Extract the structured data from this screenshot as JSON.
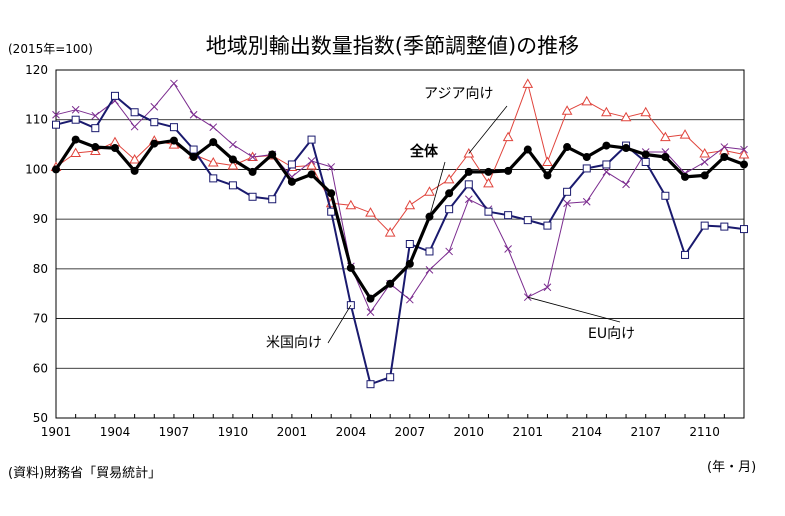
{
  "title": "地域別輸出数量指数(季節調整値)の推移",
  "base_note": "(2015年=100)",
  "source_note": "(資料)財務省「貿易統計」",
  "unit_note": "(年・月)",
  "colors": {
    "total": "#000000",
    "us": "#1a1a6e",
    "eu": "#7b2c8f",
    "asia": "#e0443c"
  },
  "chart_data": {
    "type": "line",
    "title": "地域別輸出数量指数(季節調整値)の推移",
    "xlabel": "(年・月)",
    "ylabel": "",
    "ylim": [
      50,
      120
    ],
    "yticks": [
      50,
      60,
      70,
      80,
      90,
      100,
      110,
      120
    ],
    "x_tick_labels": [
      "1901",
      "1904",
      "1907",
      "1910",
      "2001",
      "2004",
      "2007",
      "2010",
      "2101",
      "2104",
      "2107",
      "2110"
    ],
    "x": [
      "1901",
      "1902",
      "1903",
      "1904",
      "1905",
      "1906",
      "1907",
      "1908",
      "1909",
      "1910",
      "1911",
      "1912",
      "2001",
      "2002",
      "2003",
      "2004",
      "2005",
      "2006",
      "2007",
      "2008",
      "2009",
      "2010",
      "2011",
      "2012",
      "2101",
      "2102",
      "2103",
      "2104",
      "2105",
      "2106",
      "2107",
      "2108",
      "2109",
      "2110",
      "2111",
      "2112"
    ],
    "grid": true,
    "legend": "none",
    "series": [
      {
        "name": "全体",
        "color": "#000000",
        "marker": "dot",
        "values": [
          100,
          106,
          104.5,
          104.3,
          99.7,
          105.2,
          105.8,
          102.5,
          105.5,
          102,
          99.5,
          103,
          97.5,
          99,
          95.2,
          80.2,
          74,
          77,
          81,
          90.5,
          95.2,
          99.5,
          99.5,
          99.7,
          104,
          98.8,
          104.5,
          102.5,
          104.8,
          104.3,
          103,
          102.5,
          98.5,
          98.8,
          102.5,
          101
        ]
      },
      {
        "name": "米国向け",
        "color": "#1a1a6e",
        "marker": "square",
        "values": [
          109,
          110,
          108.3,
          114.8,
          111.5,
          109.5,
          108.5,
          104,
          98.2,
          96.8,
          94.5,
          94,
          101,
          106,
          91.5,
          72.7,
          56.8,
          58.2,
          85,
          83.5,
          92,
          97,
          91.5,
          90.8,
          89.8,
          88.7,
          95.5,
          100.2,
          101,
          104.8,
          101.5,
          94.7,
          82.8,
          88.7,
          88.5,
          88
        ]
      },
      {
        "name": "EU向け",
        "color": "#7b2c8f",
        "marker": "x",
        "values": [
          111,
          112,
          110.8,
          113.8,
          108.6,
          112.6,
          117.3,
          111,
          108.5,
          105,
          102.5,
          103,
          98.5,
          101.7,
          100.5,
          80.5,
          71.3,
          77,
          73.8,
          79.8,
          83.5,
          94,
          92,
          84,
          74.3,
          76.3,
          93.2,
          93.5,
          99.5,
          97,
          103.5,
          103.5,
          99.2,
          101.5,
          104.5,
          104
        ]
      },
      {
        "name": "アジア向け",
        "color": "#e0443c",
        "marker": "triangle",
        "values": [
          100.5,
          103.3,
          103.7,
          105.5,
          102,
          105.8,
          105,
          103,
          101.4,
          100.8,
          102.5,
          102.8,
          100.5,
          100.8,
          93.2,
          92.8,
          91.3,
          87.3,
          92.8,
          95.5,
          98,
          103.2,
          97.2,
          106.5,
          117.2,
          101.5,
          111.8,
          113.7,
          111.5,
          110.5,
          111.5,
          106.5,
          107,
          103.2,
          103.8,
          103
        ]
      }
    ],
    "annotations": [
      {
        "text": "アジア向け",
        "series": "アジア向け"
      },
      {
        "text": "全体",
        "series": "全体"
      },
      {
        "text": "米国向け",
        "series": "米国向け"
      },
      {
        "text": "EU向け",
        "series": "EU向け"
      }
    ]
  }
}
